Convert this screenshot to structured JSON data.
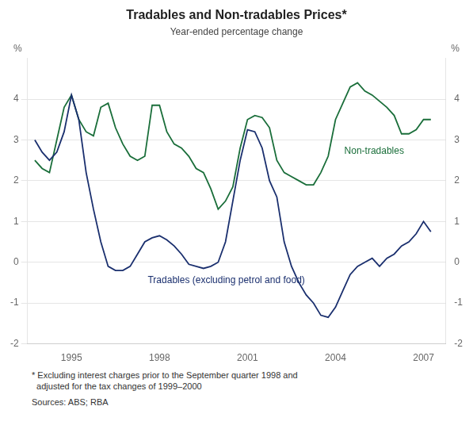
{
  "chart_data": {
    "type": "line",
    "title": "Tradables and Non-tradables Prices*",
    "subtitle": "Year-ended percentage change",
    "ylabel": "%",
    "y2label": "%",
    "footnote": "* Excluding interest charges prior to the September quarter 1998 and\n  adjusted for the tax changes of 1999–2000",
    "sources": "Sources: ABS; RBA",
    "xlim": [
      1993.5,
      2007.75
    ],
    "xticks": [
      1995,
      1998,
      2001,
      2004,
      2007
    ],
    "ylim": [
      -2,
      5
    ],
    "yticks": [
      -2,
      -1,
      0,
      1,
      2,
      3,
      4
    ],
    "y2lim": [
      -2,
      5
    ],
    "y2ticks": [
      -2,
      -1,
      0,
      1,
      2,
      3,
      4
    ],
    "grid": true,
    "x": [
      1993.75,
      1994.0,
      1994.25,
      1994.5,
      1994.75,
      1995.0,
      1995.25,
      1995.5,
      1995.75,
      1996.0,
      1996.25,
      1996.5,
      1996.75,
      1997.0,
      1997.25,
      1997.5,
      1997.75,
      1998.0,
      1998.25,
      1998.5,
      1998.75,
      1999.0,
      1999.25,
      1999.5,
      1999.75,
      2000.0,
      2000.25,
      2000.5,
      2000.75,
      2001.0,
      2001.25,
      2001.5,
      2001.75,
      2002.0,
      2002.25,
      2002.5,
      2002.75,
      2003.0,
      2003.25,
      2003.5,
      2003.75,
      2004.0,
      2004.25,
      2004.5,
      2004.75,
      2005.0,
      2005.25,
      2005.5,
      2005.75,
      2006.0,
      2006.25,
      2006.5,
      2006.75,
      2007.0,
      2007.25
    ],
    "series": [
      {
        "color": "#1a2f6e",
        "values": [
          3.0,
          2.7,
          2.5,
          2.7,
          3.2,
          4.1,
          3.5,
          2.2,
          1.3,
          0.5,
          -0.1,
          -0.2,
          -0.2,
          -0.1,
          0.2,
          0.5,
          0.6,
          0.65,
          0.55,
          0.4,
          0.2,
          -0.05,
          -0.1,
          -0.15,
          -0.1,
          0.0,
          0.5,
          1.5,
          2.5,
          3.25,
          3.2,
          2.8,
          2.0,
          1.6,
          0.5,
          -0.1,
          -0.5,
          -0.8,
          -1.0,
          -1.3,
          -1.35,
          -1.1,
          -0.7,
          -0.3,
          -0.1,
          0.0,
          0.1,
          -0.1,
          0.1,
          0.2,
          0.4,
          0.5,
          0.7,
          1.0,
          0.75
        ]
      },
      {
        "color": "#1a6e3a",
        "values": [
          2.5,
          2.3,
          2.2,
          3.0,
          3.8,
          4.1,
          3.5,
          3.2,
          3.1,
          3.8,
          3.9,
          3.3,
          2.9,
          2.6,
          2.5,
          2.6,
          3.85,
          3.85,
          3.2,
          2.9,
          2.8,
          2.6,
          2.3,
          2.2,
          1.8,
          1.3,
          1.5,
          1.85,
          2.8,
          3.5,
          3.6,
          3.55,
          3.3,
          2.5,
          2.2,
          2.1,
          2.0,
          1.9,
          1.9,
          2.2,
          2.6,
          3.5,
          3.9,
          4.3,
          4.4,
          4.2,
          4.1,
          3.95,
          3.8,
          3.6,
          3.15,
          3.15,
          3.25,
          3.5,
          3.5
        ]
      }
    ],
    "annotations": [
      {
        "text": "Non-tradables",
        "x": 2004.3,
        "y": 2.65,
        "color": "#1a6e3a"
      },
      {
        "text": "Tradables (excluding petrol and food)",
        "x": 1997.6,
        "y": -0.52,
        "color": "#1a2f6e"
      }
    ]
  }
}
